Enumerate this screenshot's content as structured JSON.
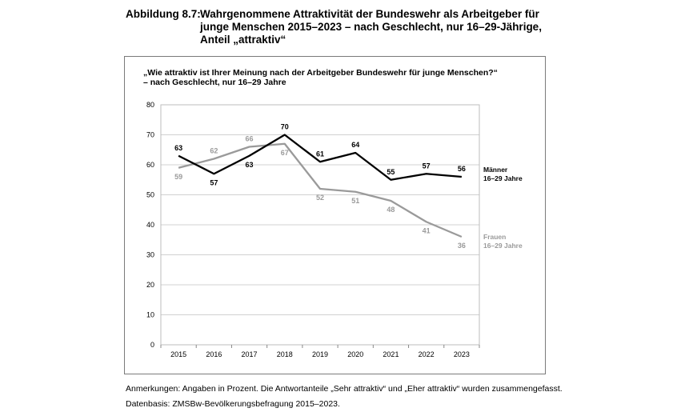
{
  "figure": {
    "label": "Abbildung 8.7:",
    "title_lines": [
      "Wahrgenommene Attraktivität der Bundeswehr als Arbeitgeber für",
      "junge Menschen 2015–2023 – nach Geschlecht, nur 16–29-Jährige,",
      "Anteil „attraktiv“"
    ],
    "question_lines": [
      "„Wie attraktiv ist Ihrer Meinung nach der Arbeitgeber Bundeswehr für junge Menschen?“",
      "– nach Geschlecht, nur 16–29 Jahre"
    ],
    "note": "Anmerkungen: Angaben in Prozent. Die Antwortanteile „Sehr attraktiv“ und „Eher attraktiv“ wurden zusammengefasst.",
    "source": "Datenbasis: ZMSBw-Bevölkerungsbefragung 2015–2023."
  },
  "chart_data": {
    "type": "line",
    "x": [
      "2015",
      "2016",
      "2017",
      "2018",
      "2019",
      "2020",
      "2021",
      "2022",
      "2023"
    ],
    "ylim": [
      0,
      80
    ],
    "yticks": [
      0,
      10,
      20,
      30,
      40,
      50,
      60,
      70,
      80
    ],
    "grid": true,
    "series": [
      {
        "name_lines": [
          "Männer",
          "16–29 Jahre"
        ],
        "color": "#000000",
        "values": [
          63,
          57,
          63,
          70,
          61,
          64,
          55,
          57,
          56
        ]
      },
      {
        "name_lines": [
          "Frauen",
          "16–29 Jahre"
        ],
        "color": "#9a9a9a",
        "values": [
          59,
          62,
          66,
          67,
          52,
          51,
          48,
          41,
          36
        ]
      }
    ]
  }
}
